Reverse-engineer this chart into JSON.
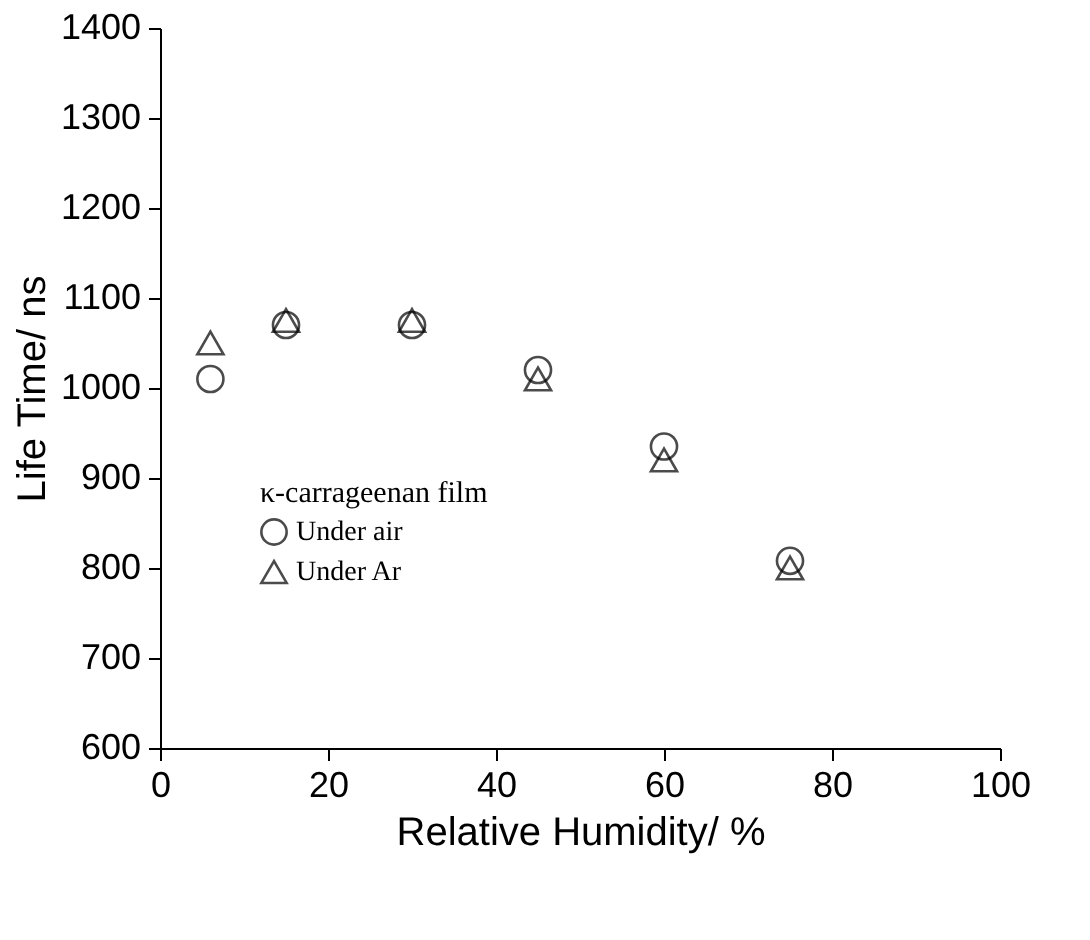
{
  "chart_data": {
    "type": "scatter",
    "xlabel": "Relative Humidity/ %",
    "ylabel": "Life Time/ ns",
    "legend_title": "κ-carrageenan film",
    "x": [
      6,
      15,
      30,
      45,
      60,
      75
    ],
    "series": [
      {
        "name": "Under air",
        "color": "#000000",
        "marker": "circle",
        "values": [
          1010,
          1070,
          1070,
          1020,
          935,
          808
        ]
      },
      {
        "name": "Under Ar",
        "color": "#000000",
        "marker": "triangle",
        "values": [
          1050,
          1075,
          1075,
          1010,
          920,
          800
        ]
      }
    ],
    "xlim": [
      0,
      100
    ],
    "xticks": [
      0,
      20,
      40,
      60,
      80,
      100
    ],
    "ylim": [
      600,
      1400
    ],
    "yticks": [
      600,
      700,
      800,
      900,
      1000,
      1100,
      1200,
      1300,
      1400
    ],
    "grid": false,
    "legend": "bottom left"
  }
}
